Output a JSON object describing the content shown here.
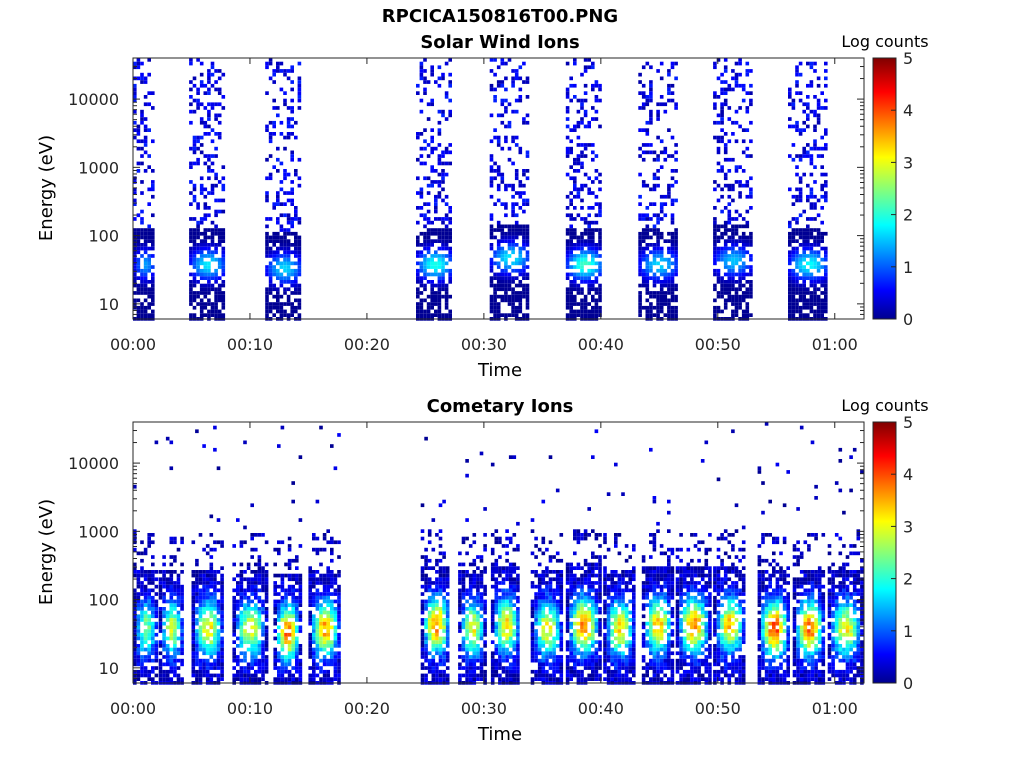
{
  "figure": {
    "title": "RPCICA150816T00.PNG"
  },
  "colormap": {
    "name": "jet",
    "label": "Log counts",
    "range": [
      0,
      5
    ],
    "ticks": [
      "0",
      "1",
      "2",
      "3",
      "4",
      "5"
    ]
  },
  "chart_data": [
    {
      "type": "heatmap",
      "title": "Solar Wind Ions",
      "xlabel": "Time",
      "ylabel": "Energy (eV)",
      "y_scale": "log",
      "x_range_minutes": [
        0,
        62.5
      ],
      "y_range_eV": [
        6,
        40000
      ],
      "x_ticks": [
        "00:00",
        "00:10",
        "00:20",
        "00:30",
        "00:40",
        "00:50",
        "01:00"
      ],
      "y_ticks": [
        "10",
        "100",
        "1000",
        "10000"
      ],
      "colorbar": "Log counts",
      "bursts": [
        {
          "start_min": 0,
          "end_min": 1.8,
          "peak_energy_eV": 40,
          "peak_log_counts": 1.4
        },
        {
          "start_min": 4.8,
          "end_min": 7.8,
          "peak_energy_eV": 40,
          "peak_log_counts": 1.8
        },
        {
          "start_min": 11.3,
          "end_min": 14.3,
          "peak_energy_eV": 35,
          "peak_log_counts": 1.7
        },
        {
          "start_min": 24.2,
          "end_min": 27.2,
          "peak_energy_eV": 40,
          "peak_log_counts": 2.0
        },
        {
          "start_min": 30.5,
          "end_min": 33.8,
          "peak_energy_eV": 50,
          "peak_log_counts": 1.8
        },
        {
          "start_min": 37.0,
          "end_min": 40.0,
          "peak_energy_eV": 40,
          "peak_log_counts": 2.2
        },
        {
          "start_min": 43.2,
          "end_min": 46.5,
          "peak_energy_eV": 40,
          "peak_log_counts": 1.7
        },
        {
          "start_min": 49.6,
          "end_min": 52.8,
          "peak_energy_eV": 45,
          "peak_log_counts": 1.6
        },
        {
          "start_min": 56.0,
          "end_min": 59.3,
          "peak_energy_eV": 40,
          "peak_log_counts": 1.9
        }
      ]
    },
    {
      "type": "heatmap",
      "title": "Cometary Ions",
      "xlabel": "Time",
      "ylabel": "Energy (eV)",
      "y_scale": "log",
      "x_range_minutes": [
        0,
        62.5
      ],
      "y_range_eV": [
        6,
        40000
      ],
      "x_ticks": [
        "00:00",
        "00:10",
        "00:20",
        "00:30",
        "00:40",
        "00:50",
        "01:00"
      ],
      "y_ticks": [
        "10",
        "100",
        "1000",
        "10000"
      ],
      "colorbar": "Log counts",
      "bursts": [
        {
          "start_min": 0,
          "end_min": 2.0,
          "peak_energy_eV": 40,
          "peak_log_counts": 2.2
        },
        {
          "start_min": 2.2,
          "end_min": 4.2,
          "peak_energy_eV": 40,
          "peak_log_counts": 2.6
        },
        {
          "start_min": 5.0,
          "end_min": 7.6,
          "peak_energy_eV": 40,
          "peak_log_counts": 2.9
        },
        {
          "start_min": 8.5,
          "end_min": 11.3,
          "peak_energy_eV": 40,
          "peak_log_counts": 2.7
        },
        {
          "start_min": 12.0,
          "end_min": 14.2,
          "peak_energy_eV": 35,
          "peak_log_counts": 3.6
        },
        {
          "start_min": 15.0,
          "end_min": 17.6,
          "peak_energy_eV": 40,
          "peak_log_counts": 3.3
        },
        {
          "start_min": 24.6,
          "end_min": 27.0,
          "peak_energy_eV": 45,
          "peak_log_counts": 3.5
        },
        {
          "start_min": 27.8,
          "end_min": 30.0,
          "peak_energy_eV": 40,
          "peak_log_counts": 2.8
        },
        {
          "start_min": 30.6,
          "end_min": 33.0,
          "peak_energy_eV": 45,
          "peak_log_counts": 3.0
        },
        {
          "start_min": 34.0,
          "end_min": 36.6,
          "peak_energy_eV": 40,
          "peak_log_counts": 2.8
        },
        {
          "start_min": 37.0,
          "end_min": 39.8,
          "peak_energy_eV": 45,
          "peak_log_counts": 3.5
        },
        {
          "start_min": 40.2,
          "end_min": 42.8,
          "peak_energy_eV": 40,
          "peak_log_counts": 3.0
        },
        {
          "start_min": 43.5,
          "end_min": 46.0,
          "peak_energy_eV": 45,
          "peak_log_counts": 3.2
        },
        {
          "start_min": 46.4,
          "end_min": 49.2,
          "peak_energy_eV": 45,
          "peak_log_counts": 3.4
        },
        {
          "start_min": 49.6,
          "end_min": 52.2,
          "peak_energy_eV": 45,
          "peak_log_counts": 3.1
        },
        {
          "start_min": 53.4,
          "end_min": 56.0,
          "peak_energy_eV": 40,
          "peak_log_counts": 3.8
        },
        {
          "start_min": 56.4,
          "end_min": 59.0,
          "peak_energy_eV": 40,
          "peak_log_counts": 3.6
        },
        {
          "start_min": 59.4,
          "end_min": 62.2,
          "peak_energy_eV": 40,
          "peak_log_counts": 2.9
        }
      ]
    }
  ]
}
